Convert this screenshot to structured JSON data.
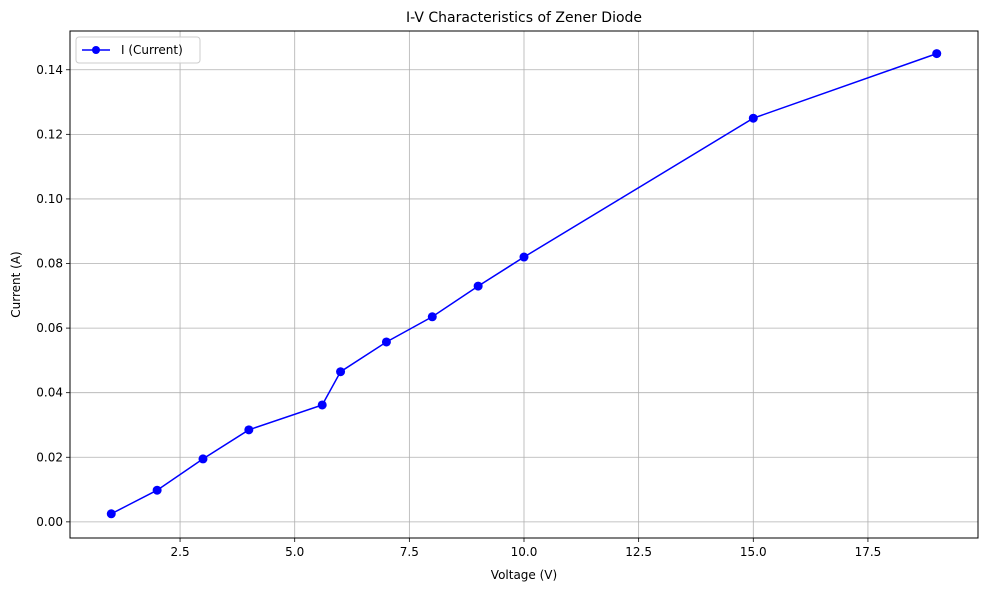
{
  "chart_data": {
    "type": "line",
    "title": "I-V Characteristics of Zener Diode",
    "xlabel": "Voltage (V)",
    "ylabel": "Current (A)",
    "xlim": [
      0.1,
      19.9
    ],
    "ylim": [
      -0.005,
      0.152
    ],
    "xticks": [
      2.5,
      5.0,
      7.5,
      10.0,
      12.5,
      15.0,
      17.5
    ],
    "xtick_labels": [
      "2.5",
      "5.0",
      "7.5",
      "10.0",
      "12.5",
      "15.0",
      "17.5"
    ],
    "yticks": [
      0.0,
      0.02,
      0.04,
      0.06,
      0.08,
      0.1,
      0.12,
      0.14
    ],
    "ytick_labels": [
      "0.00",
      "0.02",
      "0.04",
      "0.06",
      "0.08",
      "0.10",
      "0.12",
      "0.14"
    ],
    "grid": true,
    "legend_position": "top-left",
    "series": [
      {
        "name": "I (Current)",
        "color": "#0000ff",
        "marker": "circle",
        "x": [
          1,
          2,
          3,
          4,
          5.6,
          6,
          7,
          8,
          9,
          10,
          15,
          19
        ],
        "y": [
          0.0025,
          0.0098,
          0.0195,
          0.0285,
          0.0362,
          0.0465,
          0.0557,
          0.0635,
          0.073,
          0.082,
          0.125,
          0.145
        ]
      }
    ]
  }
}
